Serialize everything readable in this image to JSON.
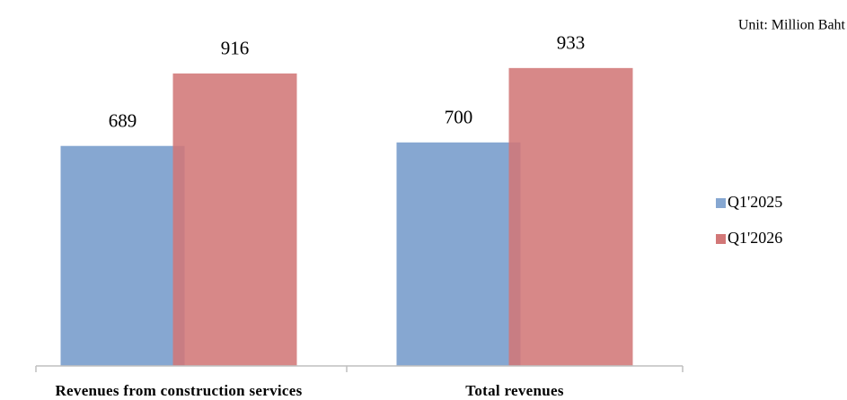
{
  "chart_data": {
    "type": "bar",
    "annotation": "Unit: Million Baht",
    "categories": [
      "Revenues from construction services",
      "Total revenues"
    ],
    "series": [
      {
        "name": "Q1'2025",
        "color": "#86a7d1",
        "values": [
          689,
          700
        ]
      },
      {
        "name": "Q1'2026",
        "color": "#d27777",
        "values": [
          916,
          933
        ]
      }
    ],
    "ylim": [
      0,
      1000
    ],
    "legend": "right"
  }
}
